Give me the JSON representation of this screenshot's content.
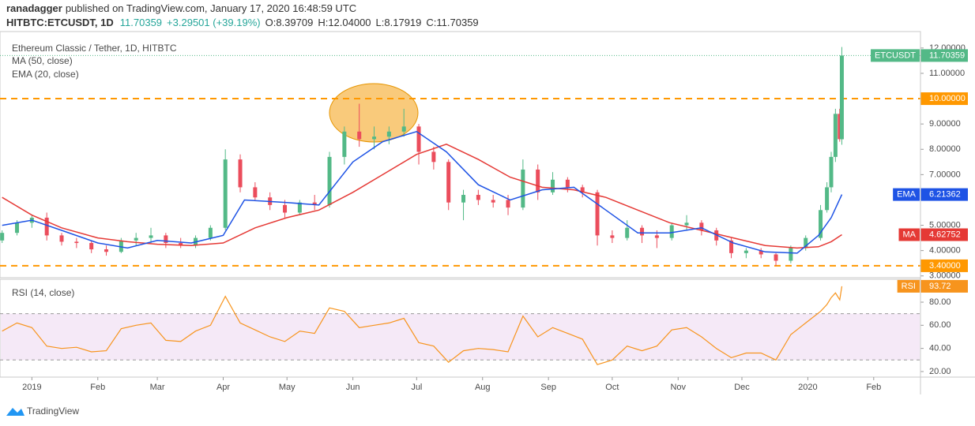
{
  "header": {
    "author": "ranadagger",
    "published": "published on TradingView.com, January 17, 2020 16:48:59 UTC",
    "symbol": "HITBTC:ETCUSDT, 1D",
    "last": "11.70359",
    "change": "+3.29501 (+39.19%)",
    "open": "O:8.39709",
    "high": "H:12.04000",
    "low": "L:8.17919",
    "close": "C:11.70359"
  },
  "footer": {
    "brand": "TradingView"
  },
  "chart_data": [
    {
      "type": "candlestick",
      "title": "Ethereum Classic / Tether, 1D, HITBTC",
      "x": [
        -14,
        -7,
        0,
        7,
        14,
        21,
        28,
        35,
        42,
        49,
        56,
        63,
        70,
        77,
        84,
        91,
        98,
        105,
        112,
        119,
        126,
        133,
        140,
        147,
        154,
        161,
        168,
        175,
        182,
        189,
        196,
        203,
        210,
        217,
        224,
        231,
        238,
        245,
        252,
        259,
        266,
        273,
        280,
        287,
        294,
        301,
        308,
        315,
        322,
        329,
        336,
        343,
        350,
        357,
        364,
        371,
        374,
        376,
        378,
        380,
        381
      ],
      "open": [
        4.4,
        4.7,
        5.1,
        5.3,
        4.6,
        4.35,
        4.3,
        4.05,
        3.95,
        4.4,
        4.5,
        4.6,
        4.3,
        4.2,
        4.5,
        4.9,
        7.6,
        6.5,
        6.1,
        5.8,
        5.5,
        5.9,
        5.8,
        7.7,
        8.7,
        8.4,
        8.5,
        8.7,
        8.9,
        7.9,
        7.5,
        5.9,
        6.2,
        6.0,
        6.0,
        5.7,
        7.2,
        6.3,
        6.8,
        6.5,
        6.3,
        4.6,
        4.5,
        4.9,
        4.6,
        4.5,
        5.0,
        5.1,
        4.8,
        4.4,
        3.9,
        4.0,
        3.85,
        3.6,
        4.1,
        4.5,
        5.6,
        6.5,
        7.7,
        9.4,
        8.39709
      ],
      "high": [
        4.8,
        5.2,
        5.4,
        5.5,
        4.7,
        4.5,
        4.4,
        4.2,
        4.5,
        4.7,
        4.9,
        4.7,
        4.5,
        4.6,
        5.0,
        8.0,
        7.8,
        6.7,
        6.3,
        6.0,
        6.0,
        6.2,
        7.9,
        8.9,
        9.8,
        8.9,
        8.9,
        9.6,
        9.0,
        8.1,
        7.6,
        6.4,
        6.4,
        6.2,
        6.2,
        7.6,
        7.4,
        7.1,
        6.9,
        6.6,
        6.4,
        4.8,
        5.2,
        5.0,
        4.8,
        5.1,
        5.4,
        5.2,
        4.9,
        4.5,
        4.1,
        4.1,
        3.9,
        4.2,
        4.6,
        5.8,
        6.7,
        7.9,
        9.6,
        9.6,
        12.04
      ],
      "low": [
        4.3,
        4.6,
        4.9,
        4.4,
        4.2,
        4.1,
        3.9,
        3.8,
        3.9,
        4.2,
        4.3,
        4.1,
        4.1,
        4.1,
        4.4,
        4.8,
        6.3,
        6.0,
        5.6,
        5.3,
        5.4,
        5.6,
        5.7,
        7.4,
        8.1,
        8.0,
        8.2,
        8.5,
        7.4,
        7.2,
        5.6,
        5.2,
        5.8,
        5.7,
        5.4,
        5.6,
        6.0,
        6.2,
        6.3,
        6.1,
        4.2,
        4.3,
        4.4,
        4.3,
        4.1,
        4.4,
        4.8,
        4.6,
        4.2,
        3.7,
        3.7,
        3.7,
        3.4,
        3.5,
        4.0,
        4.4,
        5.5,
        6.3,
        7.5,
        8.3,
        8.17919
      ],
      "close": [
        4.7,
        5.1,
        5.3,
        4.6,
        4.35,
        4.3,
        4.05,
        3.95,
        4.4,
        4.5,
        4.6,
        4.3,
        4.2,
        4.5,
        4.9,
        7.6,
        6.5,
        6.1,
        5.8,
        5.5,
        5.9,
        5.8,
        7.7,
        8.7,
        8.4,
        8.5,
        8.7,
        8.9,
        7.9,
        7.5,
        5.9,
        6.2,
        6.0,
        5.9,
        5.7,
        7.2,
        6.3,
        6.8,
        6.5,
        6.3,
        4.6,
        4.5,
        4.9,
        4.6,
        4.5,
        5.0,
        5.1,
        4.8,
        4.4,
        3.9,
        4.0,
        3.85,
        3.6,
        4.1,
        4.5,
        5.6,
        6.5,
        7.7,
        9.4,
        8.4,
        11.70359
      ],
      "up_color": "#53b987",
      "down_color": "#eb4d5c",
      "price_tag": {
        "name": "ETCUSDT",
        "label": "11.70359"
      },
      "overlays": [
        {
          "name": "MA (50, close)",
          "tag": "MA",
          "color": "#e53935",
          "last_label": "4.62752",
          "x": [
            -14,
            0,
            14,
            31,
            45,
            59,
            75,
            90,
            105,
            120,
            135,
            151,
            165,
            181,
            195,
            210,
            225,
            240,
            255,
            270,
            285,
            300,
            315,
            330,
            345,
            360,
            370,
            376,
            381
          ],
          "values": [
            6.1,
            5.4,
            4.9,
            4.5,
            4.35,
            4.25,
            4.2,
            4.3,
            4.9,
            5.3,
            5.6,
            6.3,
            7.0,
            7.8,
            8.2,
            7.6,
            6.9,
            6.5,
            6.4,
            6.1,
            5.6,
            5.1,
            4.8,
            4.5,
            4.2,
            4.1,
            4.15,
            4.35,
            4.62752
          ]
        },
        {
          "name": "EMA (20, close)",
          "tag": "EMA",
          "color": "#1e53e5",
          "last_label": "6.21362",
          "x": [
            -14,
            0,
            14,
            31,
            45,
            59,
            75,
            90,
            100,
            120,
            135,
            151,
            165,
            181,
            195,
            210,
            225,
            240,
            255,
            270,
            285,
            300,
            315,
            330,
            345,
            360,
            370,
            376,
            381
          ],
          "values": [
            5.0,
            5.2,
            4.8,
            4.3,
            4.1,
            4.4,
            4.3,
            4.6,
            6.0,
            5.9,
            5.8,
            7.5,
            8.3,
            8.7,
            7.9,
            6.6,
            6.0,
            6.4,
            6.5,
            5.6,
            4.7,
            4.7,
            4.9,
            4.3,
            3.95,
            3.9,
            4.6,
            5.3,
            6.21362
          ]
        }
      ],
      "hlines": [
        {
          "value": 10,
          "label": "10.00000"
        },
        {
          "value": 3.4,
          "label": "3.40000"
        }
      ],
      "hline_color": "#ff9800",
      "xlim": [
        -15,
        418
      ],
      "xticks": [
        {
          "value": 0,
          "label": "2019"
        },
        {
          "value": 31,
          "label": "Feb"
        },
        {
          "value": 59,
          "label": "Mar"
        },
        {
          "value": 90,
          "label": "Apr"
        },
        {
          "value": 120,
          "label": "May"
        },
        {
          "value": 151,
          "label": "Jun"
        },
        {
          "value": 181,
          "label": "Jul"
        },
        {
          "value": 212,
          "label": "Aug"
        },
        {
          "value": 243,
          "label": "Sep"
        },
        {
          "value": 273,
          "label": "Oct"
        },
        {
          "value": 304,
          "label": "Nov"
        },
        {
          "value": 334,
          "label": "Dec"
        },
        {
          "value": 365,
          "label": "2020"
        },
        {
          "value": 396,
          "label": "Feb"
        }
      ],
      "ylim": [
        2.93,
        12.65
      ],
      "yticks": [
        {
          "value": 3,
          "label": "3.00000"
        },
        {
          "value": 4,
          "label": "4.00000"
        },
        {
          "value": 5,
          "label": "5.00000"
        },
        {
          "value": 7,
          "label": "7.00000"
        },
        {
          "value": 8,
          "label": "8.00000"
        },
        {
          "value": 9,
          "label": "9.00000"
        },
        {
          "value": 11,
          "label": "11.00000"
        },
        {
          "value": 12,
          "label": "12.00000"
        }
      ]
    },
    {
      "type": "line",
      "title": "RSI (14, close)",
      "color": "#f7941d",
      "tag": "RSI",
      "last_label": "93.72",
      "x": [
        -14,
        -7,
        0,
        7,
        14,
        21,
        28,
        35,
        42,
        49,
        56,
        63,
        70,
        77,
        84,
        91,
        98,
        105,
        112,
        119,
        126,
        133,
        140,
        147,
        154,
        161,
        168,
        175,
        182,
        189,
        196,
        203,
        210,
        217,
        224,
        231,
        238,
        245,
        252,
        259,
        266,
        273,
        280,
        287,
        294,
        301,
        308,
        315,
        322,
        329,
        336,
        343,
        350,
        357,
        364,
        371,
        374,
        376,
        378,
        380,
        381
      ],
      "values": [
        55,
        62,
        58,
        42,
        40,
        41,
        37,
        38,
        57,
        60,
        62,
        47,
        46,
        55,
        60,
        85,
        62,
        56,
        50,
        46,
        55,
        53,
        75,
        72,
        58,
        60,
        62,
        66,
        45,
        42,
        28,
        38,
        40,
        39,
        37,
        68,
        50,
        58,
        53,
        48,
        26,
        30,
        42,
        38,
        42,
        56,
        58,
        50,
        40,
        32,
        36,
        36,
        30,
        52,
        62,
        72,
        78,
        84,
        88,
        82,
        93.72
      ],
      "band": [
        30,
        70
      ],
      "band_color": "#9c27b0",
      "xlim": [
        -15,
        418
      ],
      "ylim": [
        15.2,
        99.8
      ],
      "yticks": [
        {
          "value": 20,
          "label": "20.00"
        },
        {
          "value": 40,
          "label": "40.00"
        },
        {
          "value": 60,
          "label": "60.00"
        },
        {
          "value": 80,
          "label": "80.00"
        }
      ]
    }
  ]
}
